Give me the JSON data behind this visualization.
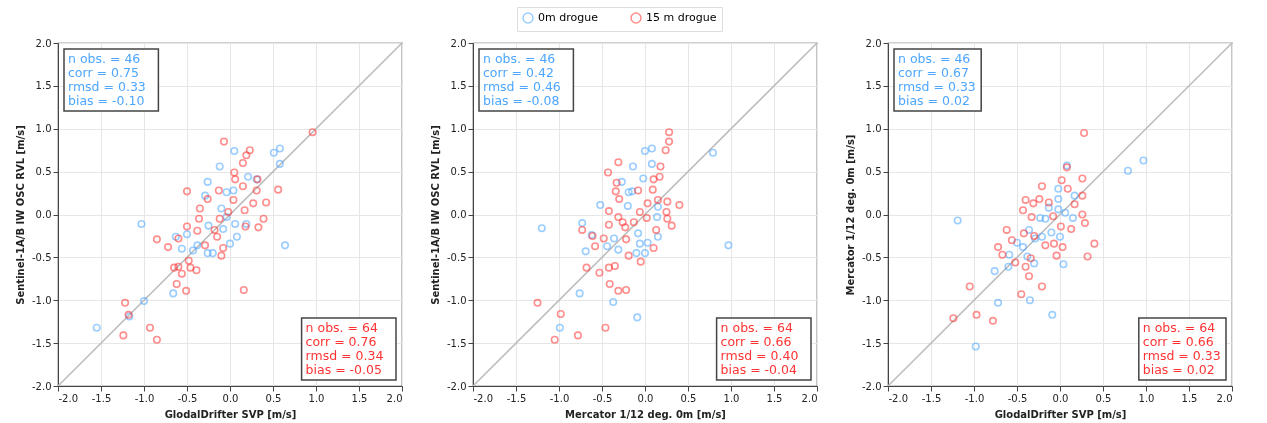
{
  "chart_data": [
    {
      "type": "scatter",
      "xlabel": "GlodalDrifter SVP [m/s]",
      "ylabel": "Sentinel-1A/B IW OSC RVL [m/s]",
      "xlim": [
        -2,
        2
      ],
      "ylim": [
        -2,
        2
      ],
      "xticks": [
        {
          "value": -2,
          "label": "-2.0"
        },
        -1.5,
        {
          "value": -1,
          "label": "-1.0"
        },
        -0.5,
        {
          "value": 0,
          "label": "0.0"
        },
        0.5,
        {
          "value": 1,
          "label": "1.0"
        },
        1.5,
        {
          "value": 2,
          "label": "2.0"
        }
      ],
      "yticks": [
        {
          "value": -2,
          "label": "-2.0"
        },
        -1.5,
        {
          "value": -1,
          "label": "-1.0"
        },
        -0.5,
        {
          "value": 0,
          "label": "0.0"
        },
        0.5,
        {
          "value": 1,
          "label": "1.0"
        },
        1.5,
        {
          "value": 2,
          "label": "2.0"
        }
      ],
      "grid": true,
      "marker": "circle",
      "annotations": [
        "n obs. = 46\ncorr = 0.75\nrmsd = 0.33\nbias = -0.10",
        "n obs. = 64\ncorr = 0.76\nrmsd = 0.34\nbias = -0.05"
      ],
      "series": [
        {
          "type": "line",
          "marker": "none",
          "color": "#bbbbbb",
          "x": [
            -2,
            2
          ],
          "values": [
            -2,
            2
          ]
        },
        {
          "color": "#4da6ff",
          "x": [
            -1.55,
            -1.17,
            -1.0,
            -1.03,
            -0.66,
            -0.63,
            -0.56,
            -0.5,
            -0.43,
            -0.38,
            -0.26,
            -0.2,
            -0.26,
            -0.29,
            -0.12,
            0.05,
            -0.04,
            0.04,
            -0.1,
            -0.04,
            -0.08,
            0,
            0.08,
            0.06,
            0.19,
            0.21,
            0.31,
            0.51,
            0.58,
            0.58,
            0.64,
            -0.25
          ],
          "values": [
            -1.32,
            -1.19,
            -1.01,
            -0.11,
            -0.92,
            -0.26,
            -0.4,
            -0.23,
            -0.42,
            -0.36,
            -0.45,
            -0.45,
            0.38,
            0.22,
            0.56,
            0.74,
            0.26,
            0.28,
            0.07,
            -0.03,
            -0.17,
            -0.34,
            -0.26,
            -0.11,
            -0.11,
            0.44,
            0.41,
            0.72,
            0.77,
            0.59,
            -0.36,
            -0.13
          ]
        },
        {
          "color": "#ff3333",
          "x": [
            0.96,
            -0.07,
            0.23,
            0.19,
            0.15,
            0.05,
            0.06,
            0.15,
            0.32,
            0.31,
            0.56,
            -0.13,
            -0.5,
            -0.26,
            -0.35,
            -0.36,
            0.04,
            -0.02,
            0.17,
            0.27,
            0.42,
            0.39,
            0.33,
            0.18,
            -0.12,
            -0.18,
            -0.15,
            -0.29,
            -0.08,
            -0.1,
            -0.5,
            -0.38,
            -0.6,
            -0.72,
            -0.85,
            -0.48,
            -0.6,
            -0.65,
            -0.56,
            -0.46,
            -0.39,
            -0.62,
            -0.51,
            0.16,
            -1.22,
            -1.18,
            -1.24,
            -0.93,
            -0.85
          ],
          "values": [
            0.96,
            0.85,
            0.75,
            0.69,
            0.6,
            0.49,
            0.41,
            0.33,
            0.41,
            0.28,
            0.29,
            0.28,
            0.27,
            0.18,
            0.07,
            -0.05,
            0.17,
            0.03,
            0.05,
            0.13,
            0.14,
            -0.05,
            -0.15,
            -0.14,
            -0.05,
            -0.18,
            -0.26,
            -0.36,
            -0.39,
            -0.48,
            -0.14,
            -0.19,
            -0.28,
            -0.38,
            -0.29,
            -0.54,
            -0.61,
            -0.62,
            -0.69,
            -0.62,
            -0.65,
            -0.81,
            -0.89,
            -0.88,
            -1.03,
            -1.17,
            -1.41,
            -1.32,
            -1.46
          ]
        }
      ]
    },
    {
      "type": "scatter",
      "xlabel": "Mercator 1/12 deg. 0m [m/s]",
      "ylabel": "Sentinel-1A/B IW OSC RVL [m/s]",
      "xlim": [
        -2,
        2
      ],
      "ylim": [
        -2,
        2
      ],
      "xticks": [
        {
          "value": -2,
          "label": "-2.0"
        },
        -1.5,
        {
          "value": -1,
          "label": "-1.0"
        },
        -0.5,
        {
          "value": 0,
          "label": "0.0"
        },
        0.5,
        {
          "value": 1,
          "label": "1.0"
        },
        1.5,
        {
          "value": 2,
          "label": "2.0"
        }
      ],
      "yticks": [
        {
          "value": -2,
          "label": "-2.0"
        },
        -1.5,
        {
          "value": -1,
          "label": "-1.0"
        },
        -0.5,
        {
          "value": 0,
          "label": "0.0"
        },
        0.5,
        {
          "value": 1,
          "label": "1.0"
        },
        1.5,
        {
          "value": 2,
          "label": "2.0"
        }
      ],
      "grid": true,
      "marker": "circle",
      "legend": "top",
      "annotations": [
        "n obs. = 46\ncorr = 0.42\nrmsd = 0.46\nbias = -0.08",
        "n obs. = 64\ncorr = 0.66\nrmsd = 0.40\nbias = -0.04"
      ],
      "series": [
        {
          "type": "line",
          "marker": "none",
          "color": "#bbbbbb",
          "x": [
            -2,
            2
          ],
          "values": [
            -2,
            2
          ]
        },
        {
          "name": "0m drogue",
          "color": "#4da6ff",
          "x": [
            -1.2,
            -0.73,
            -0.69,
            -0.76,
            -0.99,
            -0.37,
            -0.09,
            -0.62,
            -0.44,
            -0.36,
            -0.31,
            -0.52,
            -0.27,
            -0.19,
            -0.14,
            -0.02,
            0,
            0.08,
            0.08,
            -0.2,
            0.14,
            0.15,
            0.15,
            0.03,
            -0.06,
            0,
            -0.1,
            -0.08,
            0.79,
            0.97,
            -0.15
          ],
          "values": [
            -0.16,
            -0.1,
            -0.43,
            -0.92,
            -1.32,
            -1.02,
            -1.2,
            -0.24,
            -0.37,
            -0.28,
            -0.41,
            0.11,
            0.38,
            0.26,
            0.56,
            0.42,
            0.74,
            0.77,
            0.59,
            0.1,
            -0.03,
            0.09,
            -0.26,
            -0.33,
            -0.34,
            -0.45,
            -0.45,
            -0.22,
            0.72,
            -0.36,
            0.27
          ]
        },
        {
          "name": "15 m drogue",
          "color": "#ff3333",
          "x": [
            0.28,
            0.28,
            0.24,
            -0.31,
            -0.43,
            -0.33,
            -0.34,
            -0.3,
            -0.08,
            0.09,
            0.1,
            0.17,
            0.18,
            0.15,
            0.26,
            0.4,
            0.25,
            0.26,
            0.31,
            0.03,
            -0.06,
            0.02,
            -0.42,
            -0.31,
            -0.26,
            -0.42,
            -0.23,
            -0.13,
            -0.73,
            -0.61,
            -0.48,
            -0.58,
            -0.22,
            0.13,
            0.1,
            -0.19,
            -0.05,
            -0.35,
            -0.42,
            -0.53,
            -0.68,
            -0.41,
            -0.31,
            -0.22,
            -1.25,
            -0.98,
            -0.46,
            -0.78,
            -1.05
          ],
          "values": [
            0.96,
            0.85,
            0.75,
            0.61,
            0.49,
            0.37,
            0.27,
            0.18,
            0.28,
            0.29,
            0.41,
            0.44,
            0.56,
            0.17,
            0.15,
            0.11,
            0.03,
            -0.05,
            -0.13,
            0.13,
            0.03,
            -0.04,
            0.04,
            -0.03,
            -0.09,
            -0.12,
            -0.15,
            -0.09,
            -0.18,
            -0.25,
            -0.28,
            -0.37,
            -0.29,
            -0.18,
            -0.39,
            -0.48,
            -0.55,
            -0.6,
            -0.62,
            -0.68,
            -0.62,
            -0.81,
            -0.89,
            -0.88,
            -1.03,
            -1.16,
            -1.32,
            -1.41,
            -1.46
          ]
        }
      ]
    },
    {
      "type": "scatter",
      "xlabel": "GlodalDrifter SVP [m/s]",
      "ylabel": "Mercator 1/12 deg. 0m [m/s]",
      "xlim": [
        -2,
        2
      ],
      "ylim": [
        -2,
        2
      ],
      "xticks": [
        {
          "value": -2,
          "label": "-2.0"
        },
        -1.5,
        {
          "value": -1,
          "label": "-1.0"
        },
        -0.5,
        {
          "value": 0,
          "label": "0.0"
        },
        0.5,
        {
          "value": 1,
          "label": "1.0"
        },
        1.5,
        {
          "value": 2,
          "label": "2.0"
        }
      ],
      "yticks": [
        {
          "value": -2,
          "label": "-2.0"
        },
        -1.5,
        {
          "value": -1,
          "label": "-1.0"
        },
        -0.5,
        {
          "value": 0,
          "label": "0.0"
        },
        0.5,
        {
          "value": 1,
          "label": "1.0"
        },
        1.5,
        {
          "value": 2,
          "label": "2.0"
        }
      ],
      "grid": true,
      "marker": "circle",
      "annotations": [
        "n obs. = 46\ncorr = 0.67\nrmsd = 0.33\nbias = 0.02",
        "n obs. = 64\ncorr = 0.66\nrmsd = 0.33\nbias = 0.02"
      ],
      "series": [
        {
          "type": "line",
          "marker": "none",
          "color": "#bbbbbb",
          "x": [
            -2,
            2
          ],
          "values": [
            -2,
            2
          ]
        },
        {
          "color": "#4da6ff",
          "x": [
            -1.19,
            -0.98,
            -0.76,
            -0.72,
            -0.6,
            -0.59,
            -0.5,
            -0.43,
            -0.38,
            -0.3,
            -0.36,
            -0.35,
            -0.09,
            0.04,
            0,
            -0.1,
            -0.21,
            -0.17,
            -0.13,
            -0.02,
            0.06,
            0.15,
            -0.02,
            -0.02,
            0.08,
            0.17,
            0.79,
            0.97,
            -0.23,
            -0.29
          ],
          "values": [
            -0.07,
            -1.54,
            -0.66,
            -1.03,
            -0.61,
            -0.47,
            -0.33,
            -0.38,
            -0.49,
            -0.57,
            -0.18,
            -1.0,
            -1.17,
            -0.58,
            -0.26,
            -0.21,
            -0.26,
            -0.05,
            0.08,
            0.06,
            0.02,
            -0.04,
            0.3,
            0.18,
            0.57,
            0.22,
            0.51,
            0.63,
            -0.04,
            -0.28
          ]
        },
        {
          "color": "#ff3333",
          "x": [
            0.28,
            0.08,
            0.26,
            0.02,
            0.09,
            -0.21,
            -0.24,
            -0.4,
            -0.31,
            -0.43,
            -0.33,
            -0.13,
            0.26,
            0.17,
            0.26,
            0.29,
            0.13,
            0.01,
            -0.08,
            -0.62,
            -0.42,
            -0.56,
            -0.3,
            -0.17,
            -0.07,
            0.03,
            0.4,
            0.32,
            -0.04,
            -0.72,
            -0.67,
            -0.52,
            -0.4,
            -0.34,
            -0.36,
            -0.21,
            -0.45,
            -1.05,
            -1.24,
            -0.97,
            -0.78
          ],
          "values": [
            0.95,
            0.55,
            0.42,
            0.4,
            0.3,
            0.33,
            0.18,
            0.17,
            0.13,
            0.05,
            -0.03,
            0.14,
            0.22,
            0.12,
            0,
            -0.1,
            -0.17,
            -0.14,
            -0.02,
            -0.18,
            -0.22,
            -0.3,
            -0.25,
            -0.36,
            -0.34,
            -0.38,
            -0.34,
            -0.49,
            -0.48,
            -0.38,
            -0.47,
            -0.56,
            -0.61,
            -0.51,
            -0.72,
            -0.84,
            -0.93,
            -0.84,
            -1.21,
            -1.17,
            -1.24
          ]
        }
      ]
    }
  ]
}
